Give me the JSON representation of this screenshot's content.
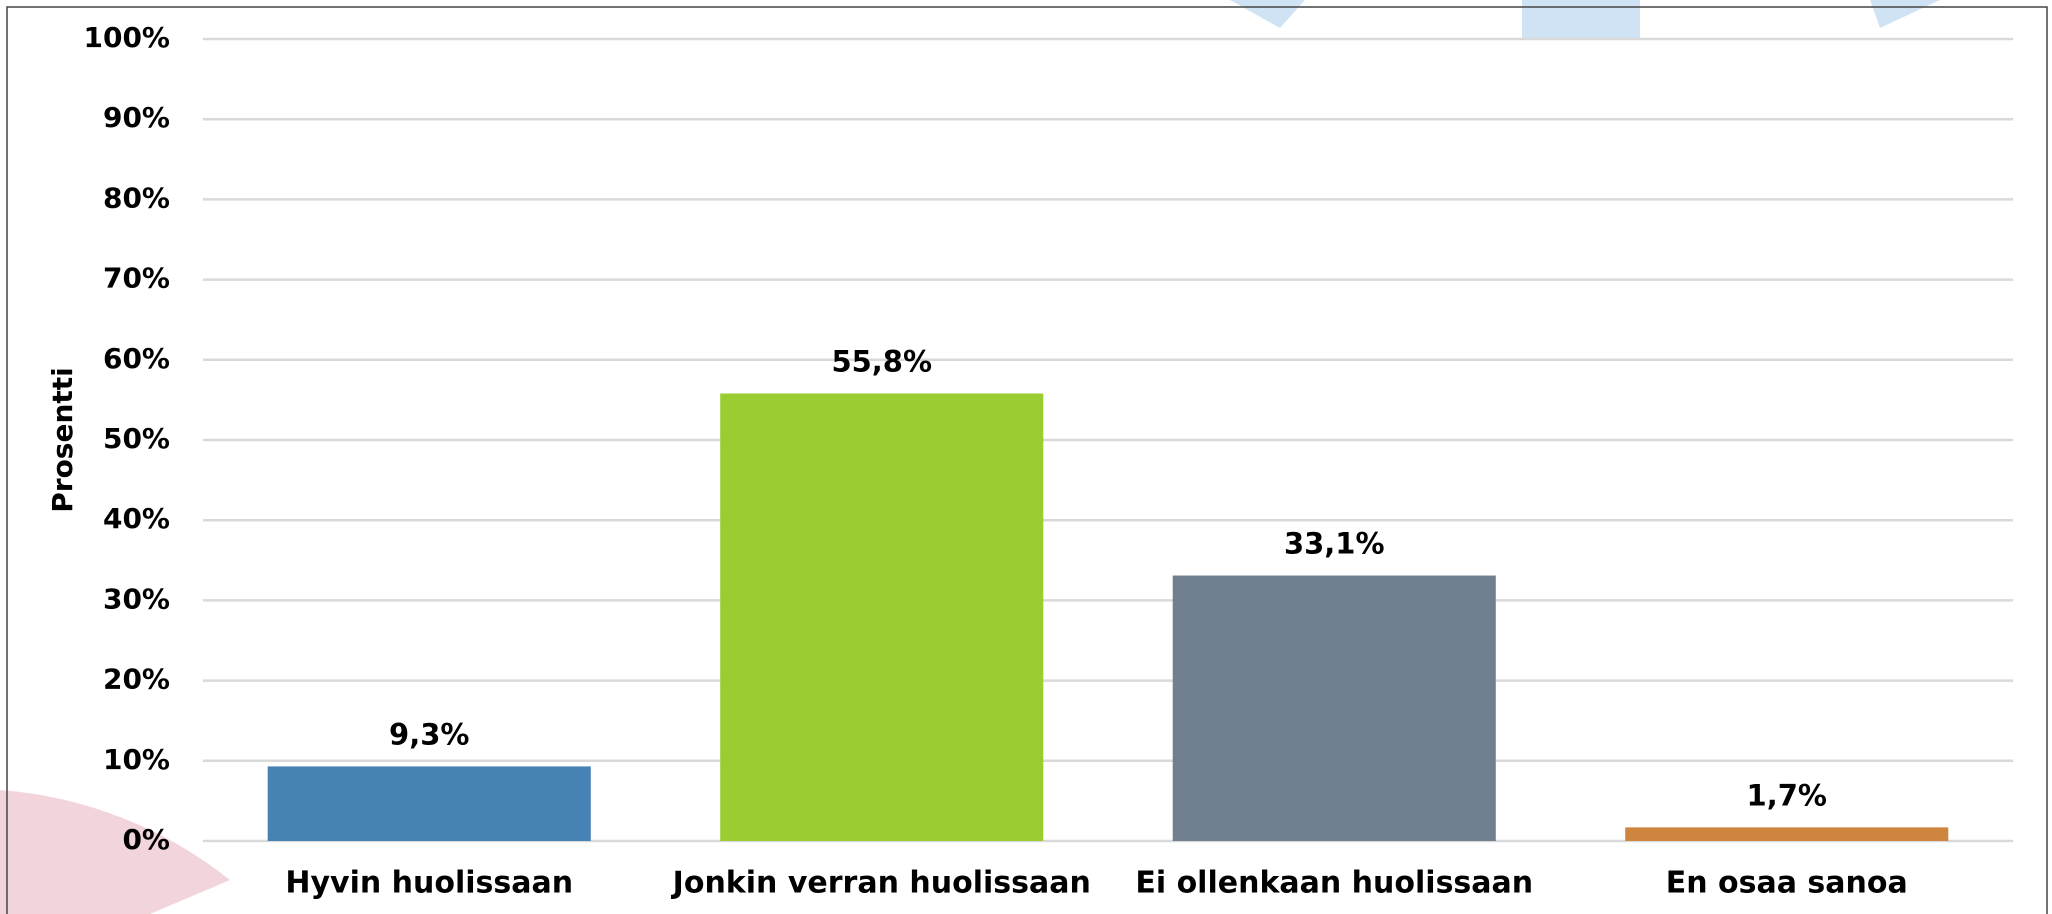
{
  "chart_data": {
    "type": "bar",
    "y_label": "Prosentti",
    "categories": [
      "Hyvin huolissaan",
      "Jonkin verran huolissaan",
      "Ei ollenkaan huolissaan",
      "En osaa sanoa"
    ],
    "values": [
      9.3,
      55.8,
      33.1,
      1.7
    ],
    "value_labels": [
      "9,3%",
      "55,8%",
      "33,1%",
      "1,7%"
    ],
    "colors": [
      "#4682b4",
      "#9acd32",
      "#708090",
      "#cd853f"
    ],
    "ylim": [
      0,
      100
    ],
    "yticks": [
      {
        "value": 0,
        "label": "0%"
      },
      {
        "value": 10,
        "label": "10%"
      },
      {
        "value": 20,
        "label": "20%"
      },
      {
        "value": 30,
        "label": "30%"
      },
      {
        "value": 40,
        "label": "40%"
      },
      {
        "value": 50,
        "label": "50%"
      },
      {
        "value": 60,
        "label": "60%"
      },
      {
        "value": 70,
        "label": "70%"
      },
      {
        "value": 80,
        "label": "80%"
      },
      {
        "value": 90,
        "label": "90%"
      },
      {
        "value": 100,
        "label": "100%"
      }
    ],
    "grid": true
  }
}
